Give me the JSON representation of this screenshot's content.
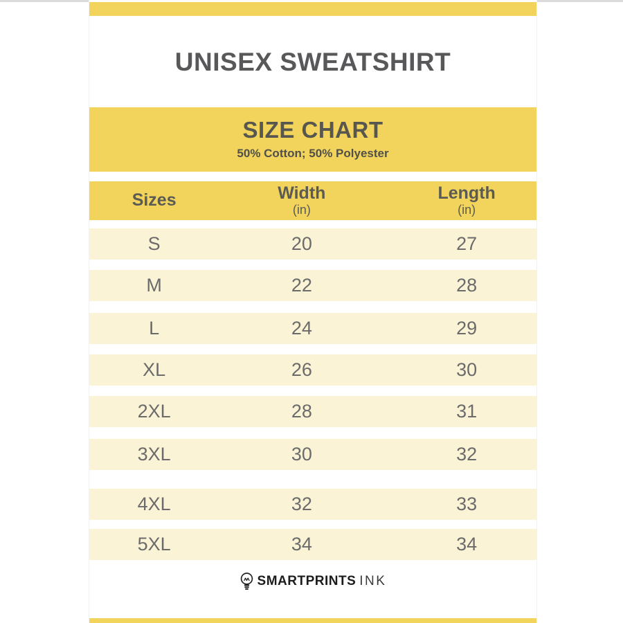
{
  "page": {
    "title": "UNISEX SWEATSHIRT"
  },
  "size_chart": {
    "heading": "SIZE CHART",
    "subheading": "50% Cotton; 50% Polyester",
    "columns": [
      {
        "label": "Sizes",
        "unit": ""
      },
      {
        "label": "Width",
        "unit": "(in)"
      },
      {
        "label": "Length",
        "unit": "(in)"
      }
    ],
    "rows": [
      {
        "size": "S",
        "width": "20",
        "length": "27"
      },
      {
        "size": "M",
        "width": "22",
        "length": "28"
      },
      {
        "size": "L",
        "width": "24",
        "length": "29"
      },
      {
        "size": "XL",
        "width": "26",
        "length": "30"
      },
      {
        "size": "2XL",
        "width": "28",
        "length": "31"
      },
      {
        "size": "3XL",
        "width": "30",
        "length": "32"
      },
      {
        "size": "4XL",
        "width": "32",
        "length": "33"
      },
      {
        "size": "5XL",
        "width": "34",
        "length": "34"
      }
    ]
  },
  "footer": {
    "brand_bold": "SMARTPRINTS",
    "brand_light": "INK",
    "icon": "lightbulb-icon"
  },
  "colors": {
    "accent_yellow": "#F2D45C",
    "row_cream": "#FBF3D6",
    "title_text": "#58585A",
    "header_text": "#5B5B53",
    "data_text": "#6B6B6B"
  },
  "chart_data": {
    "type": "table",
    "title": "SIZE CHART",
    "subtitle": "50% Cotton; 50% Polyester",
    "columns": [
      "Sizes",
      "Width (in)",
      "Length (in)"
    ],
    "rows": [
      [
        "S",
        20,
        27
      ],
      [
        "M",
        22,
        28
      ],
      [
        "L",
        24,
        29
      ],
      [
        "XL",
        26,
        30
      ],
      [
        "2XL",
        28,
        31
      ],
      [
        "3XL",
        30,
        32
      ],
      [
        "4XL",
        32,
        33
      ],
      [
        "5XL",
        34,
        34
      ]
    ]
  }
}
